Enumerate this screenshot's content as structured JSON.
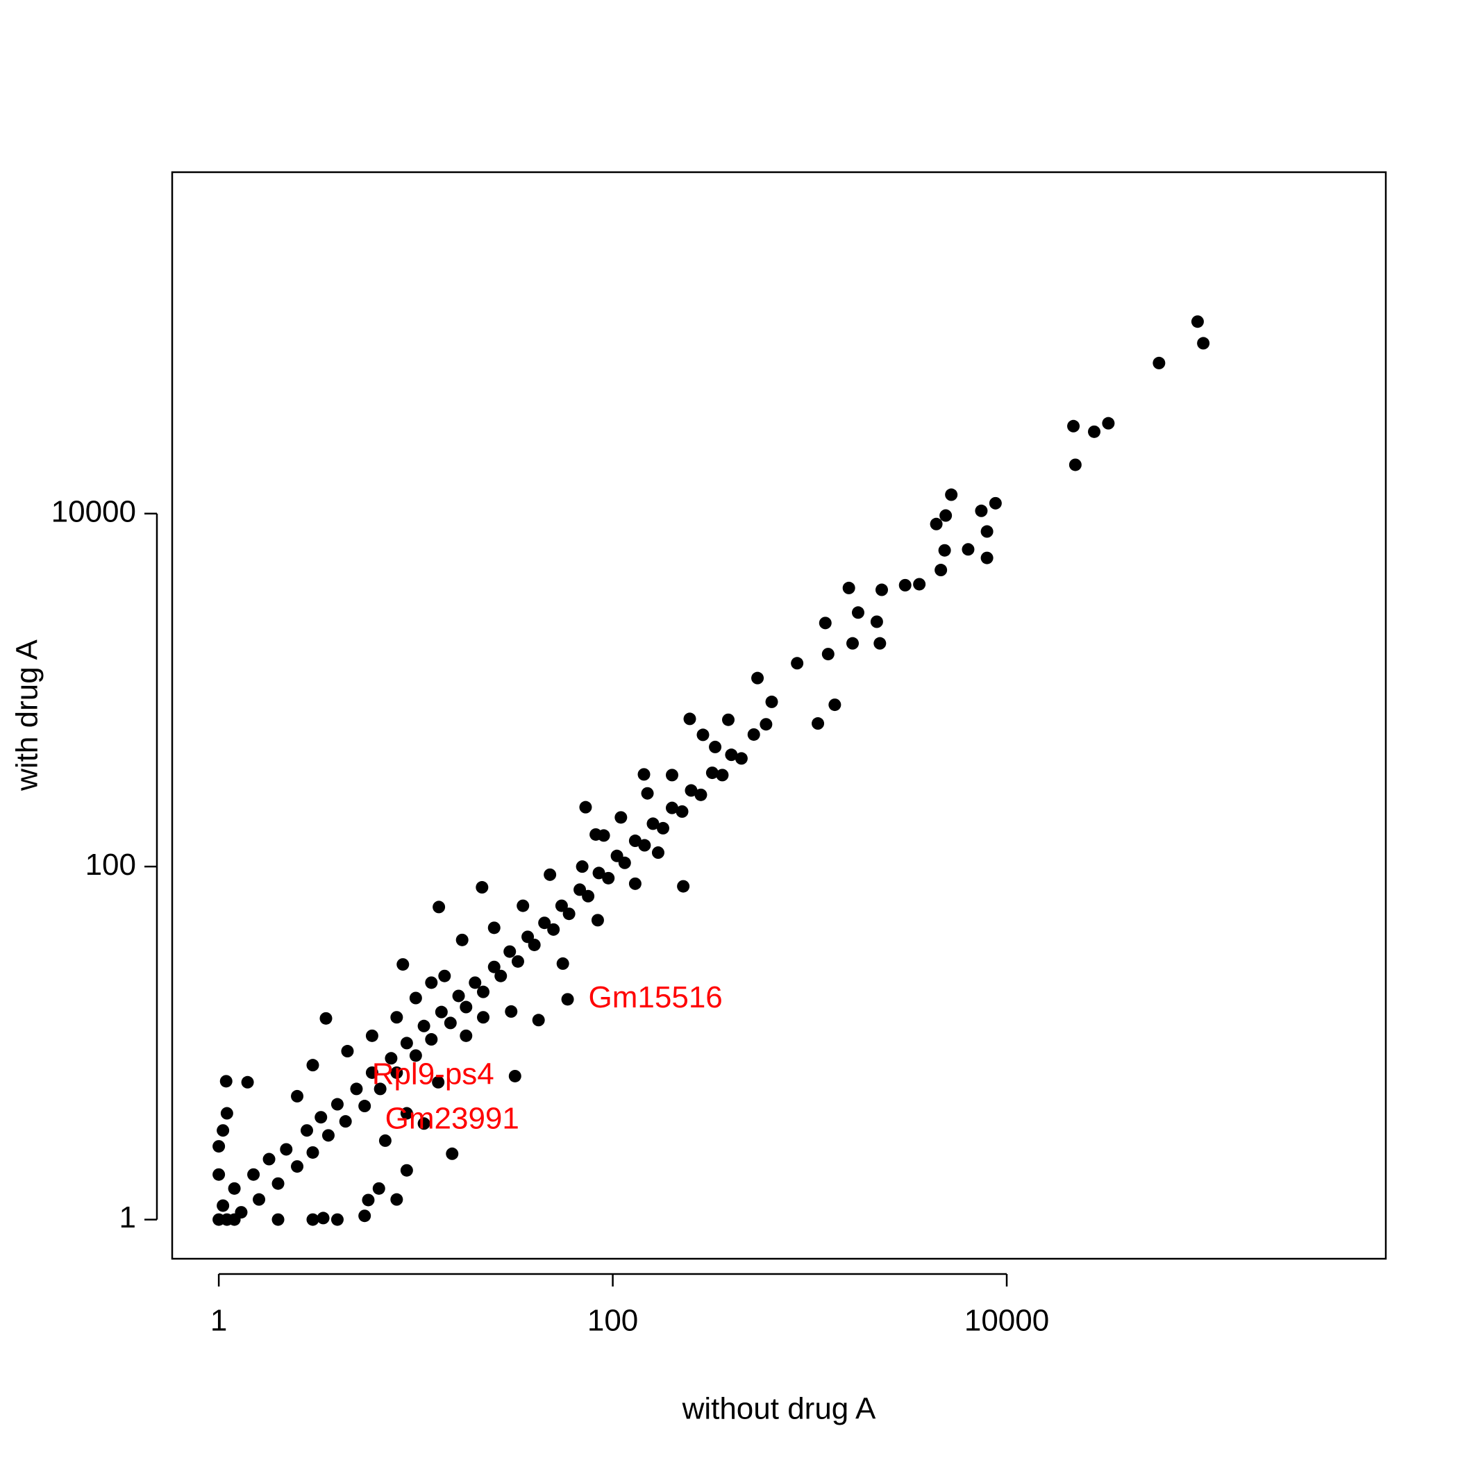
{
  "chart_data": {
    "type": "scatter",
    "x_label": "without drug A",
    "y_label": "with drug A",
    "log": "xy",
    "color": "#000000",
    "xlim": [
      0.58,
      840000
    ],
    "ylim": [
      0.6,
      860000
    ],
    "xticks": [
      1,
      100,
      10000
    ],
    "yticks": [
      1,
      100,
      10000
    ],
    "x": [
      93100,
      99500,
      59300,
      21800,
      27800,
      32800,
      22300,
      5230,
      4900,
      4390,
      8770,
      7430,
      7940,
      7940,
      6370,
      4840,
      4630,
      3600,
      3050,
      2320,
      1580,
      2190,
      1760,
      2270,
      1200,
      1240,
      1650,
      863,
      543,
      1340,
      1100,
      641,
      386,
      246,
      287,
      331,
      144,
      228,
      72.8,
      82,
      21.7,
      13.1,
      83.9,
      55.8,
      42,
      30.5,
      15.3,
      31.9,
      59,
      3.5,
      1.09,
      8.6,
      17.2,
      5.74,
      3.39,
      1,
      1.05,
      1.1,
      1.2,
      1.3,
      1.5,
      1.6,
      1.8,
      2,
      2.2,
      2.5,
      2.8,
      3,
      3.3,
      3.6,
      4,
      4.4,
      5,
      5.5,
      6,
      6.6,
      7.5,
      8,
      9,
      10,
      11,
      12,
      13.5,
      15,
      16.5,
      18,
      20,
      22,
      25,
      27,
      30,
      33,
      37,
      40,
      45,
      50,
      55,
      60,
      68,
      75,
      85,
      95,
      105,
      115,
      130,
      145,
      160,
      180,
      200,
      225,
      250,
      280,
      320,
      360,
      400,
      450,
      520,
      600,
      1,
      1,
      1.05,
      1.1,
      1.4,
      1.2,
      2,
      3,
      4,
      5.5,
      6.5,
      8,
      9,
      7,
      11,
      2.5,
      3,
      4.5,
      6,
      8,
      10,
      12,
      14,
      18,
      22,
      9,
      13,
      25,
      35,
      48,
      70,
      90,
      150,
      200,
      110,
      130,
      170
    ],
    "values": [
      122400,
      92300,
      71300,
      31300,
      29100,
      32500,
      18900,
      12800,
      9750,
      8730,
      11450,
      10370,
      7920,
      5610,
      6270,
      6190,
      4790,
      3980,
      3930,
      3700,
      3790,
      2440,
      2750,
      1840,
      2400,
      1600,
      1840,
      1420,
      1170,
      826,
      647,
      858,
      679,
      687,
      558,
      476,
      333,
      77.3,
      217,
      152,
      76.3,
      59,
      49.7,
      28.2,
      13.5,
      15.1,
      2.36,
      6.5,
      17.7,
      13.8,
      6.08,
      27.9,
      38.4,
      1.29,
      1.02,
      1,
      1.2,
      1,
      1.5,
      1.1,
      1.8,
      1.3,
      2.2,
      1.6,
      2.5,
      2,
      3.2,
      2.4,
      3.8,
      3,
      4.5,
      3.6,
      5.5,
      4.4,
      6.8,
      5.5,
      8.2,
      6.8,
      10,
      8.5,
      12.5,
      10.5,
      15,
      13,
      18.5,
      16,
      22,
      19.5,
      27,
      24,
      33,
      29,
      40,
      36,
      48,
      44,
      60,
      54,
      74,
      68,
      92,
      86,
      115,
      105,
      140,
      132,
      175,
      165,
      215,
      205,
      270,
      255,
      340,
      330,
      430,
      410,
      560,
      640,
      1.8,
      2.6,
      3.2,
      4,
      6,
      1,
      1,
      1,
      1,
      1.05,
      1.5,
      1.3,
      1.9,
      2.8,
      3.5,
      5,
      7.5,
      9,
      11,
      14,
      18,
      22,
      24,
      11,
      14,
      4,
      6,
      45,
      60,
      90,
      100,
      150,
      260,
      330,
      190,
      80,
      120
    ],
    "annotations": [
      {
        "text": "Gm15516",
        "x": 59,
        "y": 17.7,
        "position": "right",
        "color": "#ff0000"
      },
      {
        "text": "Rpl9-ps4",
        "x": 31.9,
        "y": 6.5,
        "position": "left",
        "color": "#ff0000"
      },
      {
        "text": "Gm23991",
        "x": 15.3,
        "y": 2.36,
        "position": "top",
        "color": "#ff0000"
      }
    ]
  }
}
